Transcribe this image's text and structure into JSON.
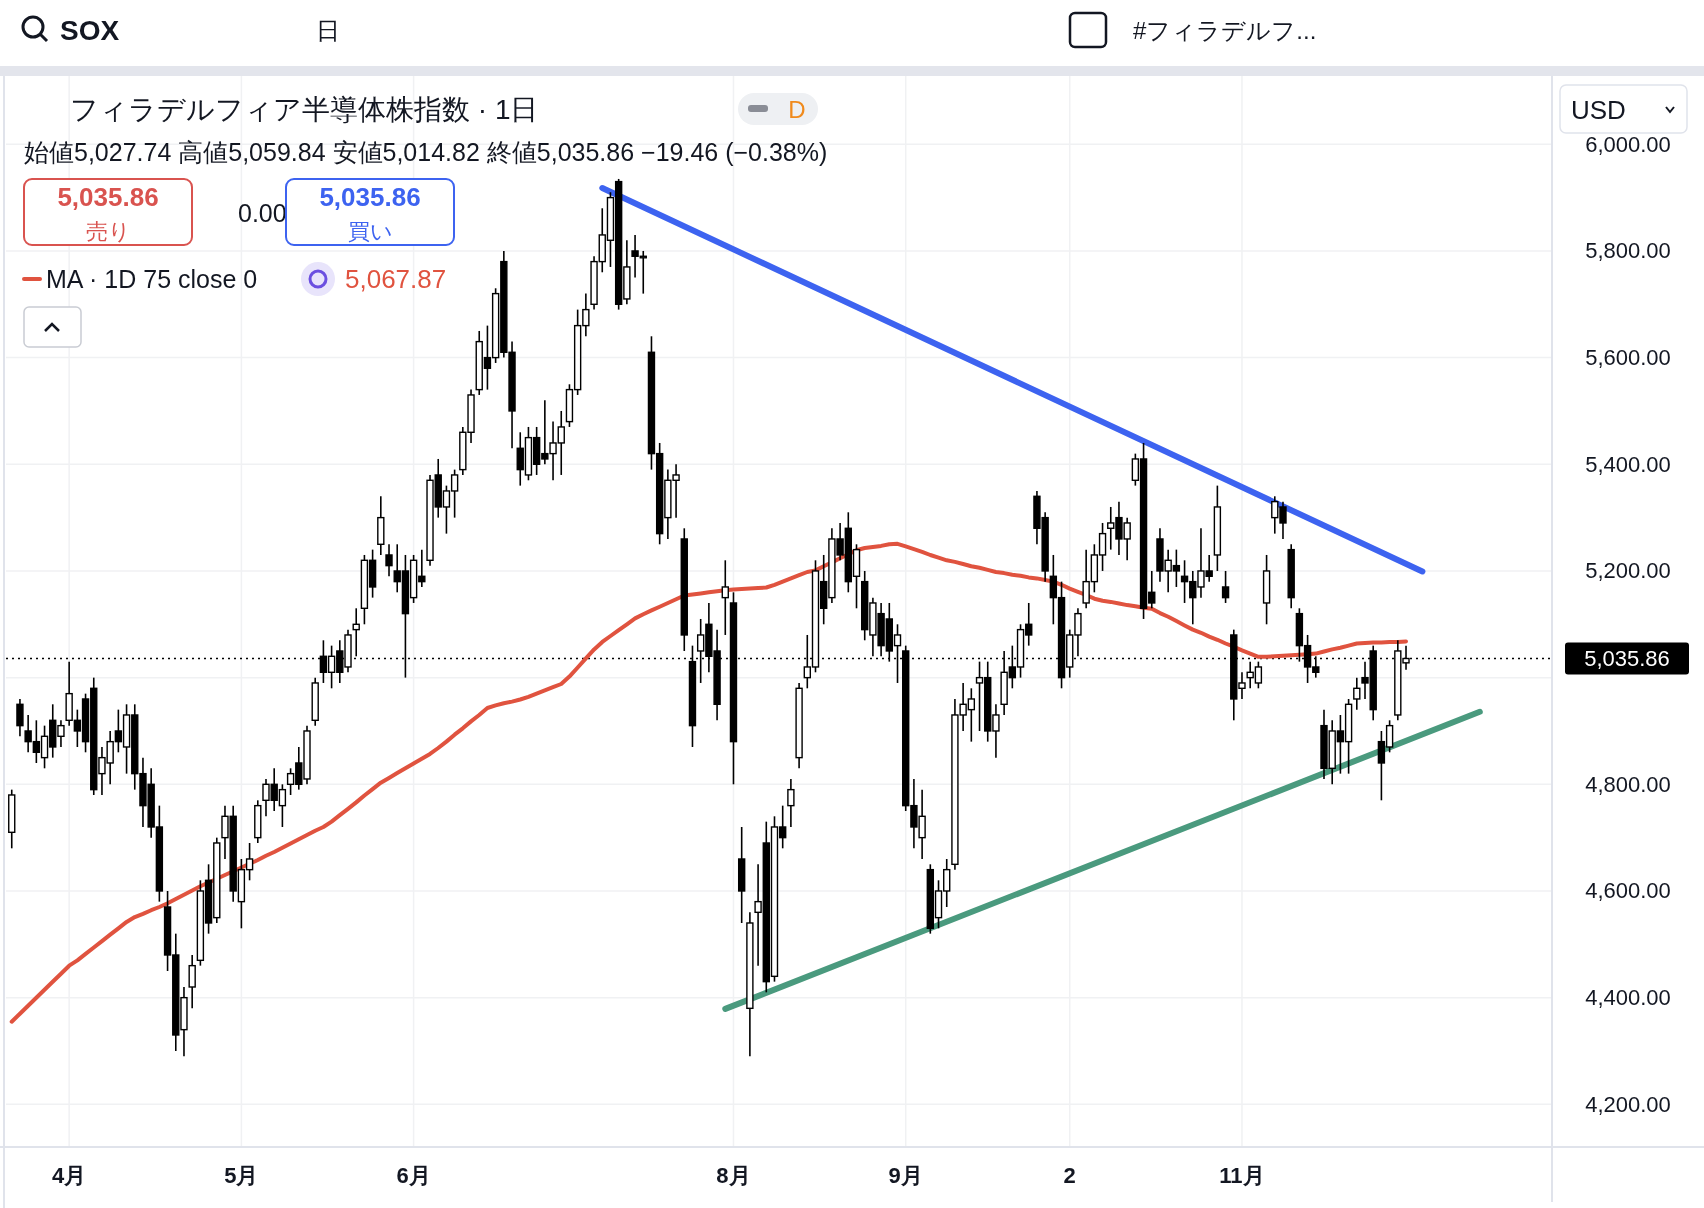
{
  "chart_data": {
    "type": "candlestick",
    "title": "フィラデルフィア半導体株指数 · 1日",
    "categories": [
      null,
      null,
      null,
      null,
      null,
      null,
      null,
      "4月",
      null,
      null,
      null,
      null,
      null,
      null,
      null,
      null,
      null,
      null,
      null,
      null,
      null,
      null,
      null,
      null,
      null,
      null,
      null,
      null,
      "5月",
      null,
      null,
      null,
      null,
      null,
      null,
      null,
      null,
      null,
      null,
      null,
      null,
      null,
      null,
      null,
      null,
      null,
      null,
      null,
      null,
      "6月",
      null,
      null,
      null,
      null,
      null,
      null,
      null,
      null,
      null,
      null,
      null,
      null,
      null,
      null,
      null,
      null,
      null,
      null,
      null,
      null,
      null,
      null,
      null,
      null,
      null,
      null,
      null,
      null,
      null,
      null,
      null,
      null,
      null,
      null,
      null,
      null,
      null,
      null,
      "8月",
      null,
      null,
      null,
      null,
      null,
      null,
      null,
      null,
      null,
      null,
      null,
      null,
      null,
      null,
      null,
      null,
      null,
      null,
      null,
      null,
      "9月",
      null,
      null,
      null,
      null,
      null,
      null,
      null,
      null,
      null,
      null,
      null,
      null,
      null,
      null,
      null,
      null,
      null,
      null,
      null,
      "2",
      null,
      null,
      null,
      null,
      null,
      null,
      null,
      null,
      null,
      null,
      null,
      null,
      null,
      null,
      null,
      null,
      null,
      null,
      null,
      null,
      "11月",
      null,
      null,
      null,
      null,
      null,
      null,
      null,
      null,
      null,
      null,
      null,
      null,
      null,
      null,
      null,
      null,
      null,
      null,
      null,
      null,
      null,
      null,
      null,
      null,
      null,
      null,
      null,
      null,
      null,
      null,
      null,
      null,
      null,
      null,
      null,
      null,
      null
    ],
    "ohlc": [
      [
        4710,
        4790,
        4680,
        4780
      ],
      [
        4950,
        4960,
        4890,
        4910
      ],
      [
        4900,
        4930,
        4860,
        4880
      ],
      [
        4880,
        4920,
        4840,
        4860
      ],
      [
        4850,
        4910,
        4830,
        4890
      ],
      [
        4920,
        4950,
        4850,
        4870
      ],
      [
        4890,
        4920,
        4870,
        4910
      ],
      [
        4920,
        5030,
        4910,
        4970
      ],
      [
        4920,
        4940,
        4870,
        4900
      ],
      [
        4960,
        4970,
        4860,
        4880
      ],
      [
        4980,
        5000,
        4780,
        4790
      ],
      [
        4820,
        4870,
        4780,
        4850
      ],
      [
        4840,
        4900,
        4800,
        4880
      ],
      [
        4900,
        4940,
        4860,
        4880
      ],
      [
        4870,
        4950,
        4820,
        4930
      ],
      [
        4930,
        4950,
        4790,
        4820
      ],
      [
        4820,
        4850,
        4720,
        4760
      ],
      [
        4800,
        4830,
        4700,
        4720
      ],
      [
        4720,
        4760,
        4580,
        4600
      ],
      [
        4570,
        4600,
        4450,
        4480
      ],
      [
        4480,
        4520,
        4300,
        4330
      ],
      [
        4340,
        4420,
        4290,
        4400
      ],
      [
        4420,
        4480,
        4380,
        4460
      ],
      [
        4470,
        4620,
        4460,
        4600
      ],
      [
        4620,
        4650,
        4520,
        4540
      ],
      [
        4550,
        4700,
        4540,
        4690
      ],
      [
        4700,
        4760,
        4660,
        4740
      ],
      [
        4740,
        4760,
        4580,
        4600
      ],
      [
        4580,
        4660,
        4530,
        4640
      ],
      [
        4640,
        4690,
        4620,
        4660
      ],
      [
        4700,
        4770,
        4690,
        4760
      ],
      [
        4770,
        4810,
        4740,
        4800
      ],
      [
        4800,
        4830,
        4750,
        4770
      ],
      [
        4760,
        4800,
        4720,
        4790
      ],
      [
        4800,
        4830,
        4780,
        4820
      ],
      [
        4840,
        4870,
        4790,
        4800
      ],
      [
        4810,
        4910,
        4800,
        4900
      ],
      [
        4920,
        5000,
        4910,
        4990
      ],
      [
        5040,
        5070,
        4990,
        5010
      ],
      [
        5010,
        5060,
        4980,
        5040
      ],
      [
        5050,
        5070,
        4990,
        5010
      ],
      [
        5020,
        5090,
        5010,
        5080
      ],
      [
        5090,
        5130,
        5040,
        5100
      ],
      [
        5130,
        5230,
        5100,
        5220
      ],
      [
        5220,
        5240,
        5150,
        5170
      ],
      [
        5250,
        5340,
        5230,
        5300
      ],
      [
        5230,
        5250,
        5190,
        5210
      ],
      [
        5200,
        5250,
        5160,
        5180
      ],
      [
        5200,
        5230,
        5000,
        5120
      ],
      [
        5150,
        5230,
        5140,
        5220
      ],
      [
        5190,
        5240,
        5170,
        5180
      ],
      [
        5220,
        5380,
        5210,
        5370
      ],
      [
        5380,
        5410,
        5300,
        5320
      ],
      [
        5320,
        5360,
        5270,
        5350
      ],
      [
        5350,
        5390,
        5300,
        5380
      ],
      [
        5390,
        5470,
        5380,
        5460
      ],
      [
        5460,
        5540,
        5440,
        5530
      ],
      [
        5540,
        5650,
        5530,
        5630
      ],
      [
        5600,
        5660,
        5540,
        5580
      ],
      [
        5600,
        5730,
        5590,
        5720
      ],
      [
        5780,
        5800,
        5600,
        5610
      ],
      [
        5610,
        5630,
        5430,
        5500
      ],
      [
        5430,
        5460,
        5360,
        5390
      ],
      [
        5380,
        5470,
        5370,
        5450
      ],
      [
        5450,
        5470,
        5380,
        5400
      ],
      [
        5420,
        5520,
        5400,
        5410
      ],
      [
        5420,
        5480,
        5370,
        5440
      ],
      [
        5440,
        5500,
        5380,
        5470
      ],
      [
        5480,
        5550,
        5470,
        5540
      ],
      [
        5540,
        5690,
        5530,
        5660
      ],
      [
        5660,
        5720,
        5640,
        5690
      ],
      [
        5700,
        5790,
        5690,
        5780
      ],
      [
        5780,
        5880,
        5760,
        5830
      ],
      [
        5820,
        5910,
        5770,
        5900
      ],
      [
        5930,
        5935,
        5690,
        5700
      ],
      [
        5710,
        5820,
        5700,
        5770
      ],
      [
        5800,
        5830,
        5750,
        5790
      ],
      [
        5790,
        5800,
        5720,
        5790
      ],
      [
        5610,
        5640,
        5390,
        5420
      ],
      [
        5420,
        5440,
        5250,
        5270
      ],
      [
        5300,
        5390,
        5260,
        5370
      ],
      [
        5370,
        5400,
        5300,
        5380
      ],
      [
        5260,
        5280,
        5050,
        5080
      ],
      [
        5030,
        5060,
        4870,
        4910
      ],
      [
        5050,
        5110,
        4990,
        5080
      ],
      [
        5100,
        5140,
        5010,
        5040
      ],
      [
        5050,
        5090,
        4920,
        4950
      ],
      [
        5150,
        5220,
        5080,
        5170
      ],
      [
        5140,
        5160,
        4800,
        4880
      ],
      [
        4660,
        4720,
        4540,
        4600
      ],
      [
        4380,
        4560,
        4290,
        4540
      ],
      [
        4560,
        4650,
        4460,
        4580
      ],
      [
        4690,
        4730,
        4410,
        4430
      ],
      [
        4440,
        4740,
        4430,
        4720
      ],
      [
        4720,
        4760,
        4680,
        4700
      ],
      [
        4760,
        4810,
        4720,
        4790
      ],
      [
        4850,
        4990,
        4830,
        4980
      ],
      [
        5000,
        5080,
        4980,
        5020
      ],
      [
        5020,
        5220,
        5010,
        5200
      ],
      [
        5180,
        5230,
        5100,
        5130
      ],
      [
        5150,
        5280,
        5140,
        5260
      ],
      [
        5260,
        5290,
        5220,
        5230
      ],
      [
        5280,
        5310,
        5160,
        5180
      ],
      [
        5190,
        5250,
        5130,
        5240
      ],
      [
        5180,
        5200,
        5070,
        5090
      ],
      [
        5080,
        5150,
        5040,
        5140
      ],
      [
        5120,
        5140,
        5040,
        5060
      ],
      [
        5110,
        5140,
        5030,
        5050
      ],
      [
        5060,
        5100,
        4990,
        5080
      ],
      [
        5050,
        5060,
        4750,
        4760
      ],
      [
        4760,
        4810,
        4680,
        4720
      ],
      [
        4700,
        4790,
        4660,
        4740
      ],
      [
        4640,
        4650,
        4520,
        4530
      ],
      [
        4550,
        4620,
        4530,
        4600
      ],
      [
        4600,
        4660,
        4570,
        4640
      ],
      [
        4650,
        4960,
        4640,
        4930
      ],
      [
        4930,
        4990,
        4900,
        4950
      ],
      [
        4940,
        4980,
        4880,
        4960
      ],
      [
        4990,
        5030,
        4900,
        5000
      ],
      [
        5000,
        5030,
        4880,
        4900
      ],
      [
        4900,
        4950,
        4850,
        4930
      ],
      [
        4950,
        5050,
        4930,
        5010
      ],
      [
        5020,
        5060,
        4980,
        5000
      ],
      [
        5020,
        5100,
        5000,
        5090
      ],
      [
        5100,
        5140,
        5060,
        5080
      ],
      [
        5340,
        5350,
        5250,
        5280
      ],
      [
        5300,
        5310,
        5180,
        5200
      ],
      [
        5190,
        5230,
        5100,
        5150
      ],
      [
        5150,
        5180,
        4980,
        5000
      ],
      [
        5020,
        5090,
        5000,
        5080
      ],
      [
        5080,
        5130,
        5040,
        5120
      ],
      [
        5140,
        5240,
        5130,
        5180
      ],
      [
        5180,
        5250,
        5160,
        5230
      ],
      [
        5230,
        5290,
        5200,
        5270
      ],
      [
        5280,
        5320,
        5240,
        5290
      ],
      [
        5300,
        5330,
        5230,
        5260
      ],
      [
        5260,
        5300,
        5220,
        5290
      ],
      [
        5370,
        5420,
        5360,
        5410
      ],
      [
        5410,
        5440,
        5110,
        5130
      ],
      [
        5160,
        5200,
        5130,
        5140
      ],
      [
        5260,
        5280,
        5180,
        5200
      ],
      [
        5200,
        5240,
        5160,
        5220
      ],
      [
        5210,
        5240,
        5170,
        5200
      ],
      [
        5190,
        5220,
        5140,
        5180
      ],
      [
        5180,
        5200,
        5100,
        5150
      ],
      [
        5170,
        5280,
        5150,
        5200
      ],
      [
        5200,
        5230,
        5180,
        5190
      ],
      [
        5230,
        5360,
        5200,
        5320
      ],
      [
        5170,
        5200,
        5140,
        5150
      ],
      [
        5080,
        5090,
        4920,
        4960
      ],
      [
        4980,
        5010,
        4960,
        4990
      ],
      [
        5000,
        5030,
        4980,
        5010
      ],
      [
        4990,
        5030,
        4980,
        5020
      ],
      [
        5140,
        5230,
        5100,
        5200
      ],
      [
        5300,
        5340,
        5270,
        5330
      ],
      [
        5320,
        5330,
        5260,
        5290
      ],
      [
        5240,
        5250,
        5130,
        5150
      ],
      [
        5120,
        5130,
        5030,
        5060
      ],
      [
        5060,
        5080,
        4990,
        5020
      ],
      [
        5020,
        5040,
        5000,
        5010
      ],
      [
        4910,
        4940,
        4810,
        4830
      ],
      [
        4830,
        4920,
        4800,
        4900
      ],
      [
        4900,
        4930,
        4820,
        4880
      ],
      [
        4880,
        4960,
        4820,
        4950
      ],
      [
        4960,
        5000,
        4940,
        4980
      ],
      [
        5000,
        5030,
        4960,
        4990
      ],
      [
        5050,
        5060,
        4920,
        4940
      ],
      [
        4880,
        4900,
        4770,
        4840
      ],
      [
        4870,
        4920,
        4860,
        4910
      ],
      [
        4930,
        5070,
        4920,
        5050
      ],
      [
        5027.74,
        5059.84,
        5014.82,
        5035.86
      ],
      null,
      null,
      null,
      null,
      null,
      null,
      null,
      null,
      null,
      null,
      null,
      null,
      null,
      null,
      null,
      null,
      null
    ],
    "series": [
      {
        "name": "MA · 1D 75 close 0",
        "type": "line",
        "color": "#e0533f",
        "values": [
          4355,
          4370,
          4385,
          4400,
          4415,
          4430,
          4445,
          4460,
          4470,
          4482,
          4494,
          4506,
          4518,
          4530,
          4542,
          4551,
          4557,
          4564,
          4570,
          4577,
          4585,
          4593,
          4601,
          4609,
          4616,
          4623,
          4630,
          4637,
          4644,
          4651,
          4658,
          4666,
          4673,
          4681,
          4689,
          4697,
          4705,
          4713,
          4720,
          4730,
          4742,
          4754,
          4766,
          4779,
          4791,
          4803,
          4812,
          4821,
          4830,
          4839,
          4848,
          4857,
          4868,
          4880,
          4893,
          4905,
          4918,
          4930,
          4943,
          4948,
          4952,
          4955,
          4959,
          4964,
          4970,
          4976,
          4982,
          4988,
          5002,
          5019,
          5036,
          5053,
          5067,
          5078,
          5089,
          5100,
          5111,
          5119,
          5126,
          5133,
          5140,
          5147,
          5154,
          5156,
          5158,
          5160,
          5162,
          5164,
          5165,
          5166,
          5167,
          5168,
          5169,
          5174,
          5180,
          5186,
          5192,
          5198,
          5201,
          5209,
          5216,
          5224,
          null,
          5239,
          5243,
          5245,
          5247,
          5250,
          5251,
          5246,
          5241,
          5236,
          5230,
          5225,
          5220,
          5217,
          5213,
          5209,
          5206,
          5202,
          5198,
          5196,
          5193,
          5191,
          5188,
          5186,
          5183,
          5180,
          5174,
          5167,
          5161,
          5155,
          5148,
          5144,
          5142,
          5139,
          5136,
          5134,
          5131,
          5129,
          5121,
          5114,
          5106,
          5098,
          5090,
          5084,
          5077,
          5071,
          5064,
          5058,
          5051,
          5045,
          5039,
          5039,
          5040,
          5041,
          5042,
          5043,
          5044,
          5045,
          5049,
          5053,
          5056,
          5060,
          5064,
          5065,
          5066,
          5066,
          5067,
          5067,
          5068,
          null,
          null,
          null,
          null,
          null,
          null,
          null,
          null,
          null,
          null,
          null,
          null,
          null,
          null,
          null,
          null,
          null
        ]
      },
      {
        "type": "line",
        "color": "#3d63f0",
        "values": [
          null,
          null,
          null,
          null,
          null,
          null,
          null,
          null,
          null,
          null,
          null,
          null,
          null,
          null,
          null,
          null,
          null,
          null,
          null,
          null,
          null,
          null,
          null,
          null,
          null,
          null,
          null,
          null,
          null,
          null,
          null,
          null,
          null,
          null,
          null,
          null,
          null,
          null,
          null,
          null,
          null,
          null,
          null,
          null,
          null,
          null,
          null,
          null,
          null,
          null,
          null,
          null,
          null,
          null,
          null,
          null,
          null,
          null,
          null,
          null,
          null,
          null,
          null,
          null,
          null,
          null,
          null,
          null,
          null,
          null,
          null,
          null,
          5918,
          null,
          null,
          null,
          null,
          null,
          null,
          null,
          null,
          null,
          null,
          null,
          null,
          null,
          null,
          null,
          null,
          null,
          null,
          null,
          null,
          null,
          null,
          null,
          null,
          null,
          null,
          null,
          null,
          null,
          null,
          null,
          null,
          null,
          null,
          null,
          null,
          null,
          null,
          null,
          null,
          null,
          null,
          null,
          null,
          null,
          null,
          null,
          null,
          null,
          null,
          null,
          null,
          null,
          null,
          null,
          null,
          null,
          null,
          null,
          null,
          null,
          null,
          null,
          null,
          null,
          null,
          null,
          null,
          null,
          null,
          null,
          null,
          null,
          null,
          null,
          null,
          null,
          null,
          null,
          null,
          null,
          null,
          null,
          null,
          null,
          null,
          null,
          null,
          null,
          null,
          null,
          null,
          null,
          null,
          null,
          null,
          null,
          null,
          null,
          5199,
          null,
          null,
          null,
          null,
          null,
          null,
          null,
          null,
          null,
          null,
          null,
          null,
          null,
          null,
          null
        ]
      },
      {
        "type": "line",
        "color": "#4a9a7e",
        "values": [
          null,
          null,
          null,
          null,
          null,
          null,
          null,
          null,
          null,
          null,
          null,
          null,
          null,
          null,
          null,
          null,
          null,
          null,
          null,
          null,
          null,
          null,
          null,
          null,
          null,
          null,
          null,
          null,
          null,
          null,
          null,
          null,
          null,
          null,
          null,
          null,
          null,
          null,
          null,
          null,
          null,
          null,
          null,
          null,
          null,
          null,
          null,
          null,
          null,
          null,
          null,
          null,
          null,
          null,
          null,
          null,
          null,
          null,
          null,
          null,
          null,
          null,
          null,
          null,
          null,
          null,
          null,
          null,
          null,
          null,
          null,
          null,
          null,
          null,
          null,
          null,
          null,
          null,
          null,
          null,
          null,
          null,
          null,
          null,
          null,
          null,
          null,
          4379,
          null,
          null,
          null,
          null,
          null,
          null,
          null,
          null,
          null,
          null,
          null,
          null,
          null,
          null,
          null,
          null,
          null,
          null,
          null,
          null,
          null,
          null,
          null,
          null,
          null,
          null,
          null,
          null,
          null,
          null,
          null,
          null,
          null,
          null,
          null,
          null,
          null,
          null,
          null,
          null,
          null,
          null,
          null,
          null,
          null,
          null,
          null,
          null,
          null,
          null,
          null,
          null,
          null,
          null,
          null,
          null,
          null,
          null,
          null,
          null,
          null,
          null,
          null,
          null,
          null,
          null,
          null,
          null,
          null,
          null,
          null,
          null,
          null,
          null,
          null,
          null,
          null,
          null,
          null,
          null,
          null,
          null,
          null,
          null,
          null,
          null,
          null,
          null,
          null,
          null,
          null,
          4936,
          null,
          null,
          null,
          null,
          null,
          null,
          null,
          null
        ]
      }
    ],
    "ylim": [
      4120,
      6128
    ],
    "yticks": [
      {
        "value": 4200,
        "label": "4,200.00"
      },
      {
        "value": 4400,
        "label": "4,400.00"
      },
      {
        "value": 4600,
        "label": "4,600.00"
      },
      {
        "value": 4800,
        "label": "4,800.00"
      },
      {
        "value": 5000,
        "label": null
      },
      {
        "value": 5200,
        "label": "5,200.00"
      },
      {
        "value": 5400,
        "label": "5,400.00"
      },
      {
        "value": 5600,
        "label": "5,600.00"
      },
      {
        "value": 5800,
        "label": "5,800.00"
      },
      {
        "value": 6000,
        "label": "6,000.00"
      }
    ],
    "grid": true,
    "ref_lines": [
      {
        "axis": "y",
        "value": 5035.86,
        "label": "5,035.86",
        "color": "#000000",
        "line_style": "dotted"
      }
    ],
    "annotations": [
      "SOX",
      "日",
      "#フィラデルフ...",
      "始値5,027.74 高値5,059.84 安値5,014.82 終値5,035.86 −19.46 (−0.38%)",
      "5,035.86",
      "売り",
      "0.00",
      "5,035.86",
      "買い",
      "5,067.87",
      "USD",
      "D"
    ]
  }
}
